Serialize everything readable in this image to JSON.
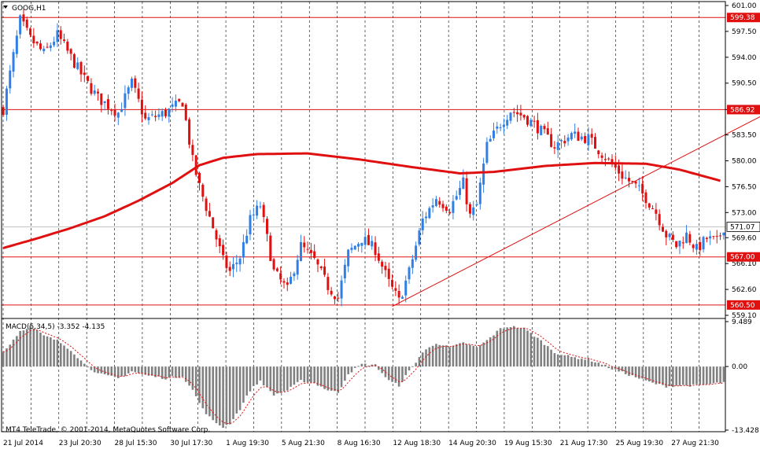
{
  "chart_data": [
    {
      "type": "candlestick",
      "title": "GOOG,H1",
      "ylim": [
        559.1,
        601.0
      ],
      "y_ticks": [
        "601.00",
        "597.50",
        "594.00",
        "590.50",
        "586.92",
        "583.50",
        "580.00",
        "576.50",
        "573.00",
        "569.60",
        "566.10",
        "562.60",
        "559.10"
      ],
      "x_ticks": [
        "21 Jul 2014",
        "23 Jul 20:30",
        "28 Jul 15:30",
        "30 Jul 17:30",
        "1 Aug 19:30",
        "5 Aug 21:30",
        "8 Aug 16:30",
        "12 Aug 18:30",
        "14 Aug 20:30",
        "19 Aug 15:30",
        "21 Aug 17:30",
        "25 Aug 19:30",
        "27 Aug 21:30"
      ],
      "current_price": "571.07",
      "up_color": "#2f7fe6",
      "down_color": "#e01010",
      "ma_color": "#e01010",
      "level_color": "#e01010",
      "horizontal_levels": [
        {
          "value": 599.38,
          "label": "599.38"
        },
        {
          "value": 586.92,
          "label": "586.92"
        },
        {
          "value": 567.0,
          "label": "567.00"
        },
        {
          "value": 560.5,
          "label": "560.50"
        }
      ],
      "trendline": {
        "from": {
          "bar": 115,
          "value": 560.3
        },
        "to": {
          "bar": 240,
          "value": 589.8
        }
      },
      "moving_average": [
        {
          "bar": 0,
          "value": 568.2
        },
        {
          "bar": 10,
          "value": 569.5
        },
        {
          "bar": 20,
          "value": 570.9
        },
        {
          "bar": 30,
          "value": 572.5
        },
        {
          "bar": 40,
          "value": 574.6
        },
        {
          "bar": 50,
          "value": 577.0
        },
        {
          "bar": 58,
          "value": 579.4
        },
        {
          "bar": 65,
          "value": 580.4
        },
        {
          "bar": 75,
          "value": 580.9
        },
        {
          "bar": 90,
          "value": 581.0
        },
        {
          "bar": 105,
          "value": 580.2
        },
        {
          "bar": 120,
          "value": 579.2
        },
        {
          "bar": 135,
          "value": 578.3
        },
        {
          "bar": 145,
          "value": 578.5
        },
        {
          "bar": 160,
          "value": 579.3
        },
        {
          "bar": 175,
          "value": 579.7
        },
        {
          "bar": 190,
          "value": 579.6
        },
        {
          "bar": 200,
          "value": 578.8
        },
        {
          "bar": 212,
          "value": 577.3
        }
      ],
      "price_path": [
        {
          "bar": 0,
          "value": 587.0
        },
        {
          "bar": 5,
          "value": 599.0
        },
        {
          "bar": 8,
          "value": 596.5
        },
        {
          "bar": 12,
          "value": 594.5
        },
        {
          "bar": 16,
          "value": 597.0
        },
        {
          "bar": 20,
          "value": 594.0
        },
        {
          "bar": 24,
          "value": 591.0
        },
        {
          "bar": 28,
          "value": 588.5
        },
        {
          "bar": 34,
          "value": 586.5
        },
        {
          "bar": 38,
          "value": 590.5
        },
        {
          "bar": 42,
          "value": 585.5
        },
        {
          "bar": 48,
          "value": 586.5
        },
        {
          "bar": 53,
          "value": 588.0
        },
        {
          "bar": 56,
          "value": 580.0
        },
        {
          "bar": 58,
          "value": 576.5
        },
        {
          "bar": 62,
          "value": 571.0
        },
        {
          "bar": 65,
          "value": 566.5
        },
        {
          "bar": 67,
          "value": 565.0
        },
        {
          "bar": 70,
          "value": 567.0
        },
        {
          "bar": 73,
          "value": 572.0
        },
        {
          "bar": 76,
          "value": 574.0
        },
        {
          "bar": 80,
          "value": 565.0
        },
        {
          "bar": 84,
          "value": 562.5
        },
        {
          "bar": 88,
          "value": 568.5
        },
        {
          "bar": 92,
          "value": 566.5
        },
        {
          "bar": 96,
          "value": 563.0
        },
        {
          "bar": 99,
          "value": 561.5
        },
        {
          "bar": 102,
          "value": 567.5
        },
        {
          "bar": 106,
          "value": 569.5
        },
        {
          "bar": 110,
          "value": 568.0
        },
        {
          "bar": 114,
          "value": 563.5
        },
        {
          "bar": 117,
          "value": 561.0
        },
        {
          "bar": 120,
          "value": 565.0
        },
        {
          "bar": 124,
          "value": 572.0
        },
        {
          "bar": 128,
          "value": 575.0
        },
        {
          "bar": 132,
          "value": 573.5
        },
        {
          "bar": 136,
          "value": 577.0
        },
        {
          "bar": 138,
          "value": 572.5
        },
        {
          "bar": 140,
          "value": 574.0
        },
        {
          "bar": 143,
          "value": 582.0
        },
        {
          "bar": 147,
          "value": 585.0
        },
        {
          "bar": 150,
          "value": 586.8
        },
        {
          "bar": 154,
          "value": 586.0
        },
        {
          "bar": 158,
          "value": 584.5
        },
        {
          "bar": 163,
          "value": 582.0
        },
        {
          "bar": 168,
          "value": 583.5
        },
        {
          "bar": 173,
          "value": 583.0
        },
        {
          "bar": 177,
          "value": 581.0
        },
        {
          "bar": 180,
          "value": 579.5
        },
        {
          "bar": 183,
          "value": 578.0
        },
        {
          "bar": 187,
          "value": 576.5
        },
        {
          "bar": 190,
          "value": 575.0
        },
        {
          "bar": 193,
          "value": 573.0
        },
        {
          "bar": 196,
          "value": 570.0
        },
        {
          "bar": 199,
          "value": 568.5
        },
        {
          "bar": 202,
          "value": 570.0
        },
        {
          "bar": 205,
          "value": 568.0
        },
        {
          "bar": 208,
          "value": 569.5
        },
        {
          "bar": 211,
          "value": 569.0
        },
        {
          "bar": 213,
          "value": 571.07
        }
      ]
    },
    {
      "type": "histogram",
      "title": "MACD(5,34,5) -3.352 -4.135",
      "ylim": [
        -13.428,
        9.489
      ],
      "y_ticks": [
        "9.489",
        "0.00",
        "-13.428"
      ],
      "histogram_color": "#808080",
      "signal_color": "#e01010",
      "macd_path": [
        {
          "bar": 0,
          "value": 3.0
        },
        {
          "bar": 5,
          "value": 7.5
        },
        {
          "bar": 8,
          "value": 8.5
        },
        {
          "bar": 12,
          "value": 6.5
        },
        {
          "bar": 16,
          "value": 5.5
        },
        {
          "bar": 20,
          "value": 3.5
        },
        {
          "bar": 24,
          "value": 0.5
        },
        {
          "bar": 28,
          "value": -1.5
        },
        {
          "bar": 34,
          "value": -2.5
        },
        {
          "bar": 38,
          "value": -1.0
        },
        {
          "bar": 42,
          "value": -1.8
        },
        {
          "bar": 48,
          "value": -2.5
        },
        {
          "bar": 53,
          "value": -2.0
        },
        {
          "bar": 56,
          "value": -5.0
        },
        {
          "bar": 59,
          "value": -9.0
        },
        {
          "bar": 62,
          "value": -11.5
        },
        {
          "bar": 65,
          "value": -12.8
        },
        {
          "bar": 67,
          "value": -12.0
        },
        {
          "bar": 70,
          "value": -9.0
        },
        {
          "bar": 73,
          "value": -5.0
        },
        {
          "bar": 76,
          "value": -3.0
        },
        {
          "bar": 80,
          "value": -6.0
        },
        {
          "bar": 84,
          "value": -5.0
        },
        {
          "bar": 88,
          "value": -3.0
        },
        {
          "bar": 92,
          "value": -3.5
        },
        {
          "bar": 96,
          "value": -5.0
        },
        {
          "bar": 99,
          "value": -5.5
        },
        {
          "bar": 102,
          "value": -1.5
        },
        {
          "bar": 106,
          "value": 0.5
        },
        {
          "bar": 110,
          "value": 0.3
        },
        {
          "bar": 114,
          "value": -3.0
        },
        {
          "bar": 117,
          "value": -4.0
        },
        {
          "bar": 120,
          "value": -1.0
        },
        {
          "bar": 124,
          "value": 3.0
        },
        {
          "bar": 128,
          "value": 5.0
        },
        {
          "bar": 132,
          "value": 4.0
        },
        {
          "bar": 136,
          "value": 5.0
        },
        {
          "bar": 140,
          "value": 4.0
        },
        {
          "bar": 143,
          "value": 5.5
        },
        {
          "bar": 147,
          "value": 8.0
        },
        {
          "bar": 150,
          "value": 8.5
        },
        {
          "bar": 154,
          "value": 8.0
        },
        {
          "bar": 158,
          "value": 6.0
        },
        {
          "bar": 163,
          "value": 3.0
        },
        {
          "bar": 168,
          "value": 2.0
        },
        {
          "bar": 173,
          "value": 1.5
        },
        {
          "bar": 177,
          "value": 0.5
        },
        {
          "bar": 180,
          "value": -0.5
        },
        {
          "bar": 184,
          "value": -1.5
        },
        {
          "bar": 188,
          "value": -2.5
        },
        {
          "bar": 192,
          "value": -3.5
        },
        {
          "bar": 196,
          "value": -4.2
        },
        {
          "bar": 200,
          "value": -4.0
        },
        {
          "bar": 204,
          "value": -4.0
        },
        {
          "bar": 208,
          "value": -3.8
        },
        {
          "bar": 213,
          "value": -3.352
        }
      ]
    }
  ],
  "copyright": "MT4 TeleTrade, © 2001-2014, MetaQuotes Software Corp."
}
